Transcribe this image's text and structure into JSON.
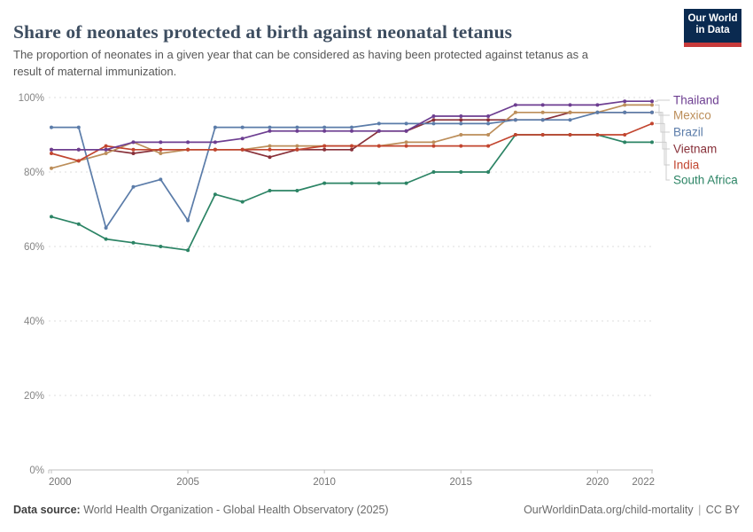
{
  "header": {
    "title": "Share of neonates protected at birth against neonatal tetanus",
    "subtitle_line1": "The proportion of neonates in a given year that can be considered as having been protected against tetanus as a",
    "subtitle_line2": "result of maternal immunization.",
    "logo": {
      "line1": "Our World",
      "line2": "in Data"
    }
  },
  "chart_data": {
    "type": "line",
    "title": "Share of neonates protected at birth against neonatal tetanus",
    "x": [
      2000,
      2001,
      2002,
      2003,
      2004,
      2005,
      2006,
      2007,
      2008,
      2009,
      2010,
      2011,
      2012,
      2013,
      2014,
      2015,
      2016,
      2017,
      2018,
      2019,
      2020,
      2021,
      2022
    ],
    "x_ticks": [
      2000,
      2005,
      2010,
      2015,
      2020,
      2022
    ],
    "y_ticks": [
      0,
      20,
      40,
      60,
      80,
      100
    ],
    "y_tick_suffix": "%",
    "ylim": [
      0,
      100
    ],
    "grid": "dashed-horizontal",
    "legend_position": "right",
    "series": [
      {
        "name": "Thailand",
        "color": "#6D3E91",
        "values": [
          86,
          86,
          86,
          88,
          88,
          88,
          88,
          89,
          91,
          91,
          91,
          91,
          91,
          91,
          95,
          95,
          95,
          98,
          98,
          98,
          98,
          99,
          99
        ]
      },
      {
        "name": "Mexico",
        "color": "#BC8E5A",
        "values": [
          81,
          83,
          85,
          88,
          85,
          86,
          86,
          86,
          87,
          87,
          87,
          87,
          87,
          88,
          88,
          90,
          90,
          96,
          96,
          96,
          96,
          98,
          98
        ]
      },
      {
        "name": "Brazil",
        "color": "#5B7CA9",
        "values": [
          92,
          92,
          65,
          76,
          78,
          67,
          92,
          92,
          92,
          92,
          92,
          92,
          93,
          93,
          93,
          93,
          93,
          94,
          94,
          94,
          96,
          96,
          96
        ]
      },
      {
        "name": "Vietnam",
        "color": "#883039",
        "values": [
          86,
          86,
          86,
          85,
          86,
          86,
          86,
          86,
          84,
          86,
          86,
          86,
          91,
          91,
          94,
          94,
          94,
          94,
          94,
          96,
          96,
          96,
          96
        ]
      },
      {
        "name": "India",
        "color": "#C2452F",
        "values": [
          85,
          83,
          87,
          86,
          86,
          86,
          86,
          86,
          86,
          86,
          87,
          87,
          87,
          87,
          87,
          87,
          87,
          90,
          90,
          90,
          90,
          90,
          93
        ]
      },
      {
        "name": "South Africa",
        "color": "#2C8465",
        "values": [
          68,
          66,
          62,
          61,
          60,
          59,
          74,
          72,
          75,
          75,
          77,
          77,
          77,
          77,
          80,
          80,
          80,
          90,
          90,
          90,
          90,
          88,
          88
        ]
      }
    ]
  },
  "footer": {
    "source_label": "Data source:",
    "source_text": "World Health Organization - Global Health Observatory (2025)",
    "link": "OurWorldinData.org/child-mortality",
    "separator": "|",
    "license": "CC BY"
  }
}
